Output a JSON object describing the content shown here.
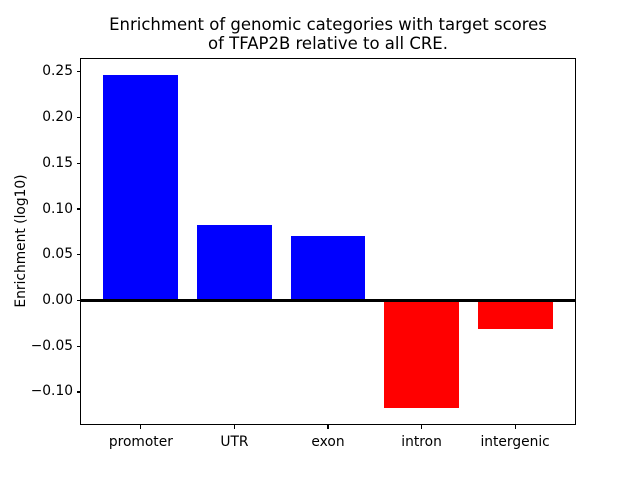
{
  "chart_data": {
    "type": "bar",
    "title": "Enrichment of genomic categories with target scores\nof TFAP2B relative to all CRE.",
    "xlabel": "",
    "ylabel": "Enrichment (log10)",
    "categories": [
      "promoter",
      "UTR",
      "exon",
      "intron",
      "intergenic"
    ],
    "values": [
      0.246,
      0.082,
      0.071,
      -0.117,
      -0.031
    ],
    "bar_colors": {
      "positive": "#0000ff",
      "negative": "#ff0000"
    },
    "bar_width_fraction": 0.8,
    "xlim": [
      -0.64,
      4.64
    ],
    "ylim": [
      -0.135,
      0.264
    ],
    "yticks": [
      -0.1,
      -0.05,
      0.0,
      0.05,
      0.1,
      0.15,
      0.2,
      0.25
    ],
    "ytick_labels": [
      "−0.10",
      "−0.05",
      "0.00",
      "0.05",
      "0.10",
      "0.15",
      "0.20",
      "0.25"
    ],
    "grid": false,
    "legend": false,
    "zero_line": true,
    "axis_color": "#000000",
    "background_color": "#ffffff"
  }
}
